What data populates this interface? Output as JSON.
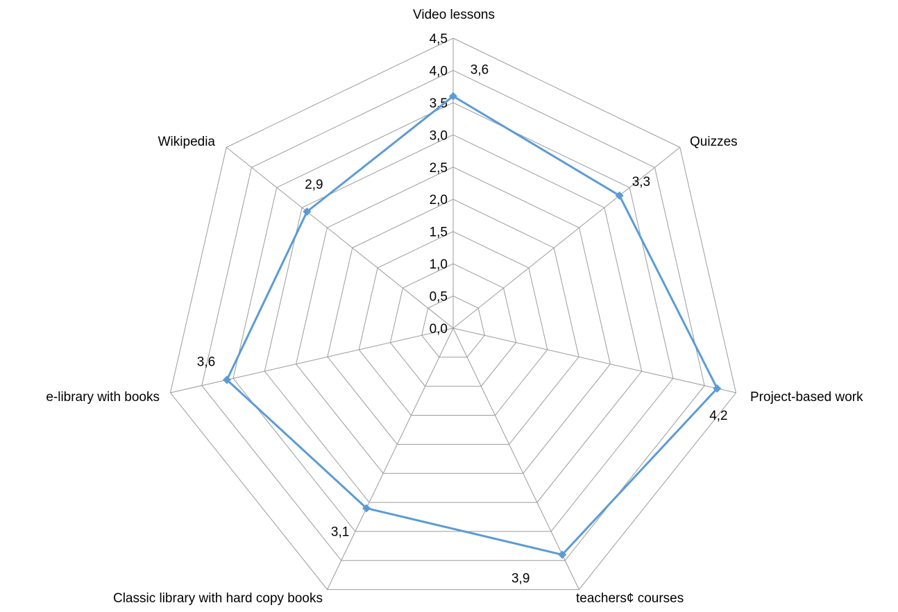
{
  "chart_data": {
    "type": "radar",
    "categories": [
      "Video lessons",
      "Quizzes",
      "Project-based work",
      "teachers¢ courses",
      "Classic library with hard copy books",
      "e-library with books",
      "Wikipedia"
    ],
    "series": [
      {
        "values": [
          3.6,
          3.3,
          4.2,
          3.9,
          3.1,
          3.6,
          2.9
        ],
        "value_labels": [
          "3,6",
          "3,3",
          "4,2",
          "3,9",
          "3,1",
          "3,6",
          "2,9"
        ],
        "color": "#5b9bd5"
      }
    ],
    "rlim": [
      0,
      4.5
    ],
    "ticks": [
      "0,0",
      "0,5",
      "1,0",
      "1,5",
      "2,0",
      "2,5",
      "3,0",
      "3,5",
      "4,0",
      "4,5"
    ],
    "grid": true,
    "legend": "none",
    "gridColor": "#9a9a9a"
  }
}
